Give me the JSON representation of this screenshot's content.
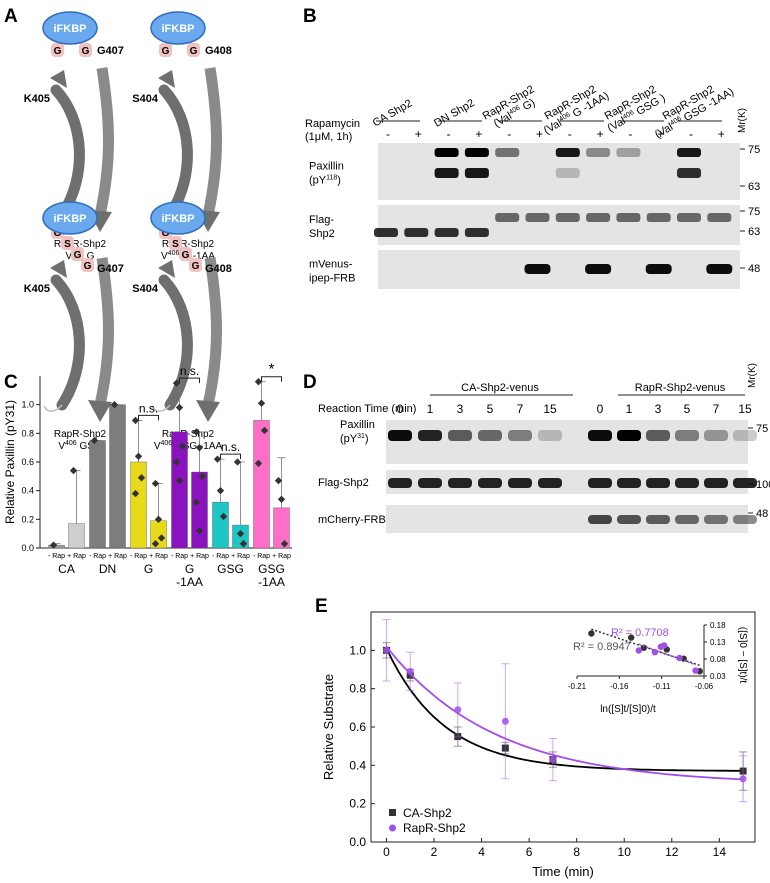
{
  "panel_labels": {
    "a": "A",
    "b": "B",
    "c": "C",
    "d": "D",
    "e": "E"
  },
  "panel_a": {
    "fkbp_label": "iFKBP",
    "constructs": [
      {
        "pre_residue": "K405",
        "post_residue": "G407",
        "linker": [
          "G",
          "G"
        ],
        "caption_main": "RapR-Shp2",
        "caption_sub": "V406 G"
      },
      {
        "pre_residue": "S404",
        "post_residue": "G408",
        "linker": [
          "G",
          "G"
        ],
        "caption_main": "RapR-Shp2",
        "caption_sub": "V406 G -1AA"
      },
      {
        "pre_residue": "K405",
        "post_residue": "G407",
        "linker": [
          "G",
          "S",
          "G",
          "G"
        ],
        "caption_main": "RapR-Shp2",
        "caption_sub": "V406 GSG"
      },
      {
        "pre_residue": "S404",
        "post_residue": "G408",
        "linker": [
          "G",
          "S",
          "G",
          "G"
        ],
        "caption_main": "RapR-Shp2",
        "caption_sub": "V406 GSG -1AA"
      }
    ]
  },
  "panel_b": {
    "groups": [
      {
        "line1": "CA Shp2",
        "line2": ""
      },
      {
        "line1": "DN Shp2",
        "line2": ""
      },
      {
        "line1": "RapR-Shp2",
        "line2": "(Val406 G)"
      },
      {
        "line1": "RapR-Shp2",
        "line2": "(Val406 G -1AA)"
      },
      {
        "line1": "RapR-Shp2",
        "line2": "(Val406 GSG )"
      },
      {
        "line1": "RapR-Shp2",
        "line2": "(Val406 GSG -1AA)"
      }
    ],
    "treatment_label": "Rapamycin",
    "treatment_sub": "(1μM, 1h)",
    "minus": "-",
    "plus": "+",
    "mw_header": "Mr(K)",
    "rows": [
      {
        "line1": "Paxillin",
        "line2": "(pY118)",
        "markers": [
          "75",
          "63"
        ]
      },
      {
        "line1": "Flag-",
        "line2": "Shp2",
        "markers": [
          "75",
          "63"
        ]
      },
      {
        "line1": "mVenus-",
        "line2": "ipep-FRB",
        "markers": [
          "48"
        ]
      }
    ]
  },
  "panel_c": {
    "chart_data": {
      "type": "bar",
      "ylabel": "Relative Paxillin (pY31)",
      "ylim": [
        0,
        1.2
      ],
      "yticks": [
        "0.0",
        "0.2",
        "0.4",
        "0.6",
        "0.8",
        "1.0"
      ],
      "categories": [
        "CA",
        "DN",
        "G",
        "G -1AA",
        "GSG",
        "GSG -1AA"
      ],
      "sub_labels": [
        "- Rap",
        "+ Rap"
      ],
      "bars": [
        {
          "group": "CA",
          "treatment": "- Rap",
          "value": 0.02,
          "color": "#9e9e9e",
          "points": [
            0.02
          ]
        },
        {
          "group": "CA",
          "treatment": "+ Rap",
          "value": 0.17,
          "color": "#cfcfcf",
          "points": [
            0.54
          ]
        },
        {
          "group": "DN",
          "treatment": "- Rap",
          "value": 0.75,
          "color": "#7d7d7d",
          "points": [
            0.75
          ]
        },
        {
          "group": "DN",
          "treatment": "+ Rap",
          "value": 1.0,
          "color": "#7d7d7d",
          "points": [
            1.0
          ]
        },
        {
          "group": "G",
          "treatment": "- Rap",
          "value": 0.6,
          "color": "#e8d91a",
          "points": [
            0.89,
            0.64,
            0.49,
            0.38
          ]
        },
        {
          "group": "G",
          "treatment": "+ Rap",
          "value": 0.19,
          "color": "#e8d91a",
          "points": [
            0.45,
            0.2,
            0.07,
            0.03
          ]
        },
        {
          "group": "G -1AA",
          "treatment": "- Rap",
          "value": 0.81,
          "color": "#8a12bf",
          "points": [
            1.15,
            0.98,
            0.71,
            0.6,
            0.47
          ]
        },
        {
          "group": "G -1AA",
          "treatment": "+ Rap",
          "value": 0.53,
          "color": "#8a12bf",
          "points": [
            0.81,
            0.7,
            0.5,
            0.32,
            0.12
          ]
        },
        {
          "group": "GSG",
          "treatment": "- Rap",
          "value": 0.32,
          "color": "#1ec6c6",
          "points": [
            0.62,
            0.4,
            0.22
          ]
        },
        {
          "group": "GSG",
          "treatment": "+ Rap",
          "value": 0.16,
          "color": "#1ec6c6",
          "points": [
            0.6,
            0.1,
            0.03
          ]
        },
        {
          "group": "GSG -1AA",
          "treatment": "- Rap",
          "value": 0.89,
          "color": "#ff6ec7",
          "points": [
            1.16,
            1.01,
            0.82,
            0.59
          ]
        },
        {
          "group": "GSG -1AA",
          "treatment": "+ Rap",
          "value": 0.28,
          "color": "#ff6ec7",
          "points": [
            0.47,
            0.34,
            0.03
          ]
        }
      ],
      "error_tops": [
        0.03,
        0.54,
        0.75,
        1.0,
        0.89,
        0.45,
        1.15,
        0.81,
        0.62,
        0.6,
        1.16,
        0.63
      ],
      "annotations": [
        {
          "groups": [
            "G"
          ],
          "text": "n.s."
        },
        {
          "groups": [
            "G -1AA"
          ],
          "text": "n.s."
        },
        {
          "groups": [
            "GSG"
          ],
          "text": "n.s."
        },
        {
          "groups": [
            "GSG -1AA"
          ],
          "text": "*"
        }
      ]
    }
  },
  "panel_d": {
    "group1": "CA-Shp2-venus",
    "group2": "RapR-Shp2-venus",
    "time_label": "Reaction Time (min)",
    "times": [
      "0",
      "1",
      "3",
      "5",
      "7",
      "15"
    ],
    "mw_header": "Mr(K)",
    "rows": [
      {
        "line1": "Paxillin",
        "line2": "(pY31)",
        "marker": "75"
      },
      {
        "line1": "Flag-Shp2",
        "line2": "",
        "marker": "100"
      },
      {
        "line1": "mCherry-FRB",
        "line2": "",
        "marker": "48"
      }
    ]
  },
  "panel_e": {
    "chart_data": {
      "type": "scatter",
      "xlabel": "Time (min)",
      "ylabel": "Relative Substrate",
      "xlim": [
        0,
        15
      ],
      "ylim": [
        0,
        1.2
      ],
      "xticks": [
        "0",
        "2",
        "4",
        "6",
        "8",
        "10",
        "12",
        "14"
      ],
      "yticks": [
        "0.0",
        "0.2",
        "0.4",
        "0.6",
        "0.8",
        "1.0"
      ],
      "series": [
        {
          "name": "CA-Shp2",
          "color": "#333333",
          "marker": "square",
          "x": [
            0,
            1,
            3,
            5,
            7,
            15
          ],
          "y": [
            1.0,
            0.87,
            0.55,
            0.49,
            0.43,
            0.37
          ],
          "err": [
            0.04,
            0.03,
            0.05,
            0.03,
            0.04,
            0.1
          ],
          "fit": {
            "plateau": 0.37,
            "span": 0.64,
            "k": 0.41
          }
        },
        {
          "name": "RapR-Shp2",
          "color": "#a24fe8",
          "marker": "circle",
          "x": [
            0,
            1,
            3,
            5,
            7,
            15
          ],
          "y": [
            1.0,
            0.89,
            0.69,
            0.63,
            0.43,
            0.33
          ],
          "err": [
            0.16,
            0.1,
            0.14,
            0.3,
            0.11,
            0.12
          ],
          "fit": {
            "plateau": 0.3,
            "span": 0.72,
            "k": 0.22
          }
        }
      ],
      "inset": {
        "xlim": [
          -0.21,
          -0.06
        ],
        "ylim": [
          0.03,
          0.18
        ],
        "xticks": [
          "-0.21",
          "-0.16",
          "-0.11",
          "-0.06"
        ],
        "yticks": [
          "0.03",
          "0.08",
          "0.13",
          "0.18"
        ],
        "xlabel": "ln([S]t/[S]0)/t",
        "ylabel": "([S]0 − [S]t)/t",
        "series": [
          {
            "name": "CA-Shp2",
            "color": "#333333",
            "x": [
              -0.193,
              -0.146,
              -0.131,
              -0.104,
              -0.084,
              -0.065
            ],
            "y": [
              0.155,
              0.143,
              0.113,
              0.108,
              0.081,
              0.044
            ],
            "r2": "R² = 0.8947"
          },
          {
            "name": "RapR-Shp2",
            "color": "#a24fe8",
            "x": [
              -0.137,
              -0.118,
              -0.111,
              -0.107,
              -0.089,
              -0.07
            ],
            "y": [
              0.105,
              0.1,
              0.116,
              0.12,
              0.083,
              0.046
            ],
            "r2": "R² = 0.7708"
          }
        ]
      }
    }
  }
}
